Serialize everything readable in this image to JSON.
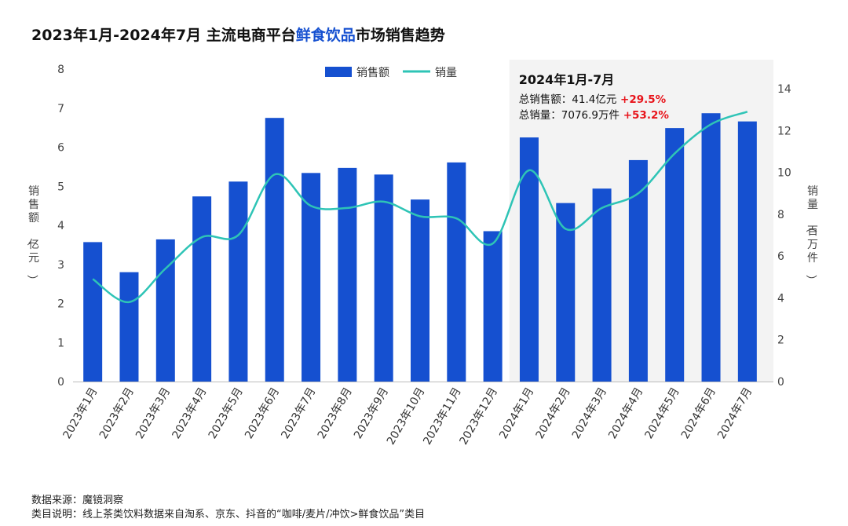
{
  "title": {
    "prefix": "2023年1月-2024年7月 主流电商平台",
    "highlight": "鲜食饮品",
    "suffix": "市场销售趋势"
  },
  "legend": {
    "bar_label": "销售额",
    "line_label": "销量"
  },
  "annotation": {
    "title": "2024年1月-7月",
    "line1_label": "总销售额：41.4亿元",
    "line1_change": "+29.5%",
    "line2_label": "总销量：7076.9万件",
    "line2_change": "+53.2%"
  },
  "footer": {
    "source": "数据来源：魔镜洞察",
    "note": "类目说明：线上茶类饮料数据来自淘系、京东、抖音的“咖啡/麦片/冲饮>鲜食饮品”类目"
  },
  "colors": {
    "bar": "#1550d0",
    "line": "#2ec4b6",
    "highlight_bg": "#f3f3f3",
    "change": "#e8141b",
    "title_highlight": "#1550d0"
  },
  "chart_data": {
    "type": "bar",
    "categories": [
      "2023年1月",
      "2023年2月",
      "2023年3月",
      "2023年4月",
      "2023年5月",
      "2023年6月",
      "2023年7月",
      "2023年8月",
      "2023年9月",
      "2023年10月",
      "2023年11月",
      "2023年12月",
      "2024年1月",
      "2024年2月",
      "2024年3月",
      "2024年4月",
      "2024年5月",
      "2024年6月",
      "2024年7月"
    ],
    "series": [
      {
        "name": "销售额",
        "type": "bar",
        "axis": "left",
        "values": [
          3.57,
          2.8,
          3.64,
          4.74,
          5.12,
          6.75,
          5.34,
          5.47,
          5.3,
          4.66,
          5.61,
          3.85,
          6.25,
          4.57,
          4.94,
          5.67,
          6.49,
          6.87,
          6.66
        ]
      },
      {
        "name": "销量",
        "type": "line",
        "axis": "right",
        "values": [
          4.9,
          3.8,
          5.4,
          6.9,
          7.0,
          9.9,
          8.4,
          8.3,
          8.6,
          7.9,
          7.8,
          6.6,
          10.1,
          7.3,
          8.3,
          9.0,
          10.9,
          12.3,
          12.9
        ]
      }
    ],
    "ylabel_left": "销售额（亿元）",
    "ylabel_right": "销量（百万件）",
    "ylim_left": [
      0,
      8
    ],
    "yticks_left": [
      0,
      1,
      2,
      3,
      4,
      5,
      6,
      7,
      8
    ],
    "ylim_right": [
      0,
      15
    ],
    "yticks_right": [
      0,
      2,
      4,
      6,
      8,
      10,
      12,
      14
    ],
    "highlight_range": [
      "2024年1月",
      "2024年7月"
    ],
    "legend_position": "top-center",
    "grid": false
  }
}
